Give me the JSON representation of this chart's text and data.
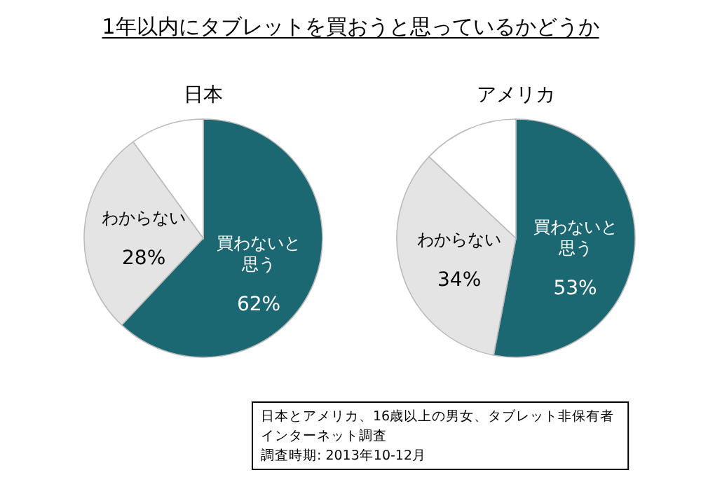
{
  "chart_data": [
    {
      "type": "other",
      "title": "1年以内にタブレットを買おうと思っているかどうか",
      "annotations": [
        "日本とアメリカ、16歳以上の男女、タブレット非保有者",
        "インターネット調査",
        "調査時期: 2013年10-12月"
      ]
    },
    {
      "type": "pie",
      "title": "日本",
      "categories": [
        "買わないと思う",
        "わからない",
        null
      ],
      "values": [
        62,
        28,
        10
      ],
      "value_labels": [
        "62%",
        "28%",
        null
      ],
      "colors": [
        "#1b6873",
        "#e4e4e4",
        "#ffffff"
      ]
    },
    {
      "type": "pie",
      "title": "アメリカ",
      "categories": [
        "買わないと思う",
        "わからない",
        null
      ],
      "values": [
        53,
        34,
        13
      ],
      "value_labels": [
        "53%",
        "34%",
        null
      ],
      "colors": [
        "#1b6873",
        "#e4e4e4",
        "#ffffff"
      ]
    }
  ]
}
